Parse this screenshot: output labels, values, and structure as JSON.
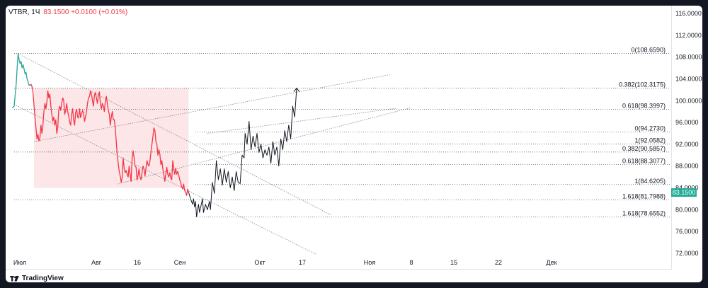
{
  "header": {
    "symbol": "VTBR",
    "interval": "1Ч",
    "last_price": "83.1500",
    "change": "+0.0100 (+0.01%)"
  },
  "branding": {
    "logo_text": "TradingView"
  },
  "colors": {
    "up": "#26a69a",
    "down": "#f23645",
    "projection": "#131722",
    "zone": "#fce6e8",
    "price_label_bg": "#22ab94"
  },
  "chart_data": {
    "type": "line",
    "y_axis": {
      "range": [
        70.0,
        117.0
      ],
      "ticks": [
        "72.0000",
        "76.0000",
        "80.0000",
        "84.0000",
        "88.0000",
        "92.0000",
        "96.0000",
        "100.0000",
        "104.0000",
        "108.0000",
        "112.0000",
        "116.0000"
      ]
    },
    "x_axis": {
      "ticks": [
        "Июл",
        "Авг",
        "16",
        "Сен",
        "Окт",
        "17",
        "Ноя",
        "8",
        "15",
        "22",
        "Дек"
      ]
    },
    "last_price_label": "83.1500",
    "series": [
      {
        "style": "price-green",
        "points": [
          [
            -2,
            98.7
          ],
          [
            0,
            99
          ],
          [
            1,
            101
          ],
          [
            2,
            103
          ],
          [
            3,
            106
          ],
          [
            4,
            108.6
          ],
          [
            5,
            107.5
          ],
          [
            6,
            106.8
          ],
          [
            7,
            107.2
          ],
          [
            8,
            106.0
          ],
          [
            9,
            106.6
          ],
          [
            10,
            105.8
          ],
          [
            11,
            104.9
          ],
          [
            12,
            105.2
          ],
          [
            13,
            104.0
          ],
          [
            14,
            103.5
          ],
          [
            15,
            102.8
          ],
          [
            16,
            102.9
          ]
        ]
      },
      {
        "style": "price-red",
        "points": [
          [
            16,
            102.9
          ],
          [
            17,
            103.0
          ],
          [
            18,
            102.6
          ],
          [
            19,
            101.5
          ],
          [
            20,
            99.2
          ],
          [
            21,
            97.0
          ],
          [
            22,
            95.0
          ],
          [
            23,
            93.0
          ],
          [
            24,
            93.8
          ],
          [
            25,
            92.6
          ],
          [
            26,
            93.2
          ],
          [
            27,
            95.5
          ],
          [
            28,
            94.0
          ],
          [
            29,
            95.5
          ],
          [
            30,
            98.0
          ],
          [
            31,
            99.5
          ],
          [
            32,
            98.5
          ],
          [
            33,
            99.8
          ],
          [
            34,
            101.8
          ],
          [
            35,
            100.5
          ],
          [
            36,
            101.2
          ],
          [
            37,
            99.0
          ],
          [
            38,
            97.5
          ],
          [
            39,
            96.2
          ],
          [
            40,
            97.0
          ],
          [
            41,
            95.5
          ],
          [
            42,
            96.5
          ],
          [
            43,
            94.0
          ],
          [
            44,
            95.2
          ],
          [
            45,
            98.3
          ],
          [
            46,
            99.0
          ],
          [
            47,
            98.2
          ],
          [
            48,
            99.6
          ],
          [
            49,
            100.5
          ],
          [
            50,
            100.0
          ],
          [
            51,
            97.5
          ],
          [
            52,
            98.2
          ],
          [
            53,
            99.5
          ],
          [
            54,
            98.0
          ],
          [
            55,
            97.2
          ],
          [
            56,
            96.1
          ],
          [
            57,
            95.5
          ],
          [
            58,
            97.5
          ],
          [
            59,
            98.5
          ],
          [
            60,
            96.5
          ],
          [
            61,
            95.5
          ],
          [
            62,
            97.8
          ],
          [
            63,
            98.4
          ],
          [
            64,
            97.0
          ],
          [
            65,
            96.8
          ],
          [
            66,
            98.5
          ],
          [
            67,
            96.9
          ],
          [
            68,
            97.5
          ],
          [
            69,
            98.2
          ],
          [
            70,
            97.8
          ],
          [
            71,
            96.2
          ],
          [
            72,
            97.0
          ],
          [
            73,
            98.0
          ],
          [
            74,
            99.5
          ],
          [
            75,
            100.5
          ],
          [
            76,
            100.8
          ],
          [
            77,
            101.8
          ],
          [
            78,
            101.2
          ],
          [
            79,
            100.0
          ],
          [
            80,
            99.0
          ],
          [
            81,
            101.0
          ],
          [
            82,
            101.5
          ],
          [
            83,
            100.5
          ],
          [
            84,
            99.5
          ],
          [
            85,
            101.0
          ],
          [
            86,
            101.6
          ],
          [
            87,
            99.5
          ],
          [
            88,
            98.5
          ],
          [
            89,
            99.5
          ],
          [
            90,
            99.0
          ],
          [
            91,
            98.0
          ],
          [
            92,
            100.0
          ],
          [
            93,
            100.8
          ],
          [
            94,
            99.5
          ],
          [
            95,
            98.2
          ],
          [
            96,
            97.5
          ],
          [
            97,
            95.5
          ],
          [
            98,
            97.0
          ],
          [
            99,
            98.0
          ],
          [
            100,
            96.5
          ],
          [
            101,
            96.5
          ],
          [
            102,
            95.0
          ],
          [
            103,
            92.5
          ],
          [
            104,
            90.0
          ],
          [
            105,
            88.5
          ],
          [
            106,
            87.0
          ],
          [
            107,
            86.2
          ],
          [
            108,
            85.0
          ],
          [
            109,
            86.0
          ],
          [
            110,
            89.5
          ],
          [
            111,
            87.5
          ],
          [
            112,
            86.8
          ],
          [
            113,
            87.2
          ],
          [
            114,
            86.5
          ],
          [
            115,
            86.0
          ],
          [
            116,
            88.0
          ],
          [
            117,
            86.5
          ],
          [
            118,
            85.2
          ],
          [
            119,
            89.5
          ],
          [
            120,
            90.8
          ],
          [
            121,
            89.5
          ],
          [
            122,
            88.0
          ],
          [
            123,
            87.8
          ],
          [
            124,
            85.5
          ],
          [
            125,
            86.3
          ],
          [
            126,
            87.5
          ],
          [
            127,
            86.0
          ],
          [
            128,
            85.5
          ],
          [
            129,
            86.8
          ],
          [
            130,
            88.0
          ],
          [
            131,
            87.5
          ],
          [
            132,
            86.2
          ],
          [
            133,
            87.6
          ],
          [
            134,
            89.0
          ],
          [
            135,
            88.3
          ],
          [
            136,
            88.0
          ],
          [
            137,
            89.0
          ],
          [
            138,
            90.5
          ],
          [
            139,
            92.0
          ],
          [
            140,
            93.5
          ],
          [
            141,
            95.0
          ],
          [
            142,
            94.5
          ],
          [
            143,
            92.5
          ],
          [
            144,
            92.0
          ],
          [
            145,
            90.0
          ],
          [
            146,
            91.0
          ],
          [
            147,
            90.2
          ],
          [
            148,
            88.3
          ],
          [
            149,
            89.0
          ],
          [
            150,
            87.5
          ],
          [
            151,
            86.5
          ],
          [
            152,
            85.2
          ],
          [
            153,
            86.5
          ],
          [
            154,
            87.8
          ],
          [
            155,
            86.5
          ],
          [
            156,
            86.0
          ],
          [
            157,
            86.8
          ],
          [
            158,
            85.8
          ],
          [
            159,
            85.5
          ],
          [
            160,
            89.0
          ],
          [
            161,
            87.5
          ],
          [
            162,
            86.5
          ],
          [
            163,
            87.6
          ],
          [
            164,
            86.5
          ],
          [
            165,
            87.0
          ],
          [
            166,
            86.4
          ],
          [
            167,
            85.5
          ],
          [
            168,
            85.0
          ],
          [
            169,
            84.2
          ],
          [
            170,
            83.8
          ],
          [
            171,
            84.7
          ],
          [
            172,
            83.5
          ],
          [
            173,
            83.2
          ],
          [
            174,
            82.6
          ],
          [
            175,
            83.8
          ],
          [
            176,
            83.2
          ]
        ]
      },
      {
        "style": "projection",
        "points": [
          [
            176,
            83.2
          ],
          [
            178,
            82.0
          ],
          [
            180,
            81.0
          ],
          [
            181,
            82.0
          ],
          [
            182,
            80.5
          ],
          [
            183,
            81.5
          ],
          [
            184,
            78.7
          ],
          [
            186,
            81.0
          ],
          [
            187,
            79.5
          ],
          [
            190,
            82.0
          ],
          [
            191,
            79.5
          ],
          [
            193,
            81.0
          ],
          [
            195,
            80.0
          ],
          [
            197,
            81.5
          ],
          [
            198,
            80.0
          ],
          [
            200,
            85.0
          ],
          [
            202,
            83.0
          ],
          [
            204,
            89.0
          ],
          [
            206,
            85.5
          ],
          [
            208,
            87.5
          ],
          [
            210,
            84.5
          ],
          [
            212,
            87.5
          ],
          [
            214,
            85.0
          ],
          [
            216,
            87.0
          ],
          [
            218,
            84.0
          ],
          [
            220,
            86.0
          ],
          [
            222,
            83.5
          ],
          [
            224,
            87.0
          ],
          [
            226,
            85.0
          ],
          [
            228,
            84.8
          ],
          [
            230,
            90.0
          ],
          [
            232,
            89.5
          ],
          [
            233,
            94.0
          ],
          [
            235,
            92.0
          ],
          [
            237,
            96.2
          ],
          [
            239,
            91.0
          ],
          [
            241,
            93.5
          ],
          [
            243,
            91.5
          ],
          [
            245,
            94.0
          ],
          [
            247,
            90.5
          ],
          [
            249,
            92.0
          ],
          [
            251,
            89.5
          ],
          [
            253,
            91.0
          ],
          [
            255,
            90.0
          ],
          [
            257,
            91.5
          ],
          [
            259,
            88.5
          ],
          [
            261,
            92.5
          ],
          [
            263,
            90.0
          ],
          [
            265,
            91.5
          ],
          [
            267,
            88.0
          ],
          [
            269,
            93.0
          ],
          [
            271,
            91.0
          ],
          [
            273,
            94.5
          ],
          [
            275,
            92.5
          ],
          [
            277,
            95.5
          ],
          [
            279,
            93.0
          ],
          [
            281,
            99.0
          ],
          [
            283,
            97.0
          ],
          [
            285,
            102.3
          ]
        ]
      }
    ],
    "fib_levels": [
      {
        "label": "0(108.6590)",
        "value": 108.659
      },
      {
        "label": "0.382(102.3175)",
        "value": 102.3175
      },
      {
        "label": "0.618(98.3997)",
        "value": 98.3997
      },
      {
        "label": "0(94.2730)",
        "value": 94.273
      },
      {
        "label": "1(92.0582)",
        "value": 92.0582
      },
      {
        "label": "0.382(90.5857)",
        "value": 90.5857
      },
      {
        "label": "0.618(88.3077)",
        "value": 88.3077
      },
      {
        "label": "1(84.6205)",
        "value": 84.6205
      },
      {
        "label": "1.618(81.7988)",
        "value": 81.7988
      },
      {
        "label": "1.618(78.6552)",
        "value": 78.6552
      }
    ],
    "trend_lines": [
      {
        "from": [
          4,
          108.6
        ],
        "to": [
          320,
          79.0
        ]
      },
      {
        "from": [
          0,
          99.3
        ],
        "to": [
          305,
          71.8
        ]
      },
      {
        "from": [
          20,
          92.5
        ],
        "to": [
          380,
          104.8
        ]
      },
      {
        "from": [
          104,
          84.7
        ],
        "to": [
          400,
          98.7
        ]
      },
      {
        "from": [
          195,
          94.0
        ],
        "to": [
          385,
          98.6
        ]
      }
    ],
    "zone": {
      "from": [
        20,
        102.3
      ],
      "to": [
        176,
        84.0
      ]
    }
  }
}
